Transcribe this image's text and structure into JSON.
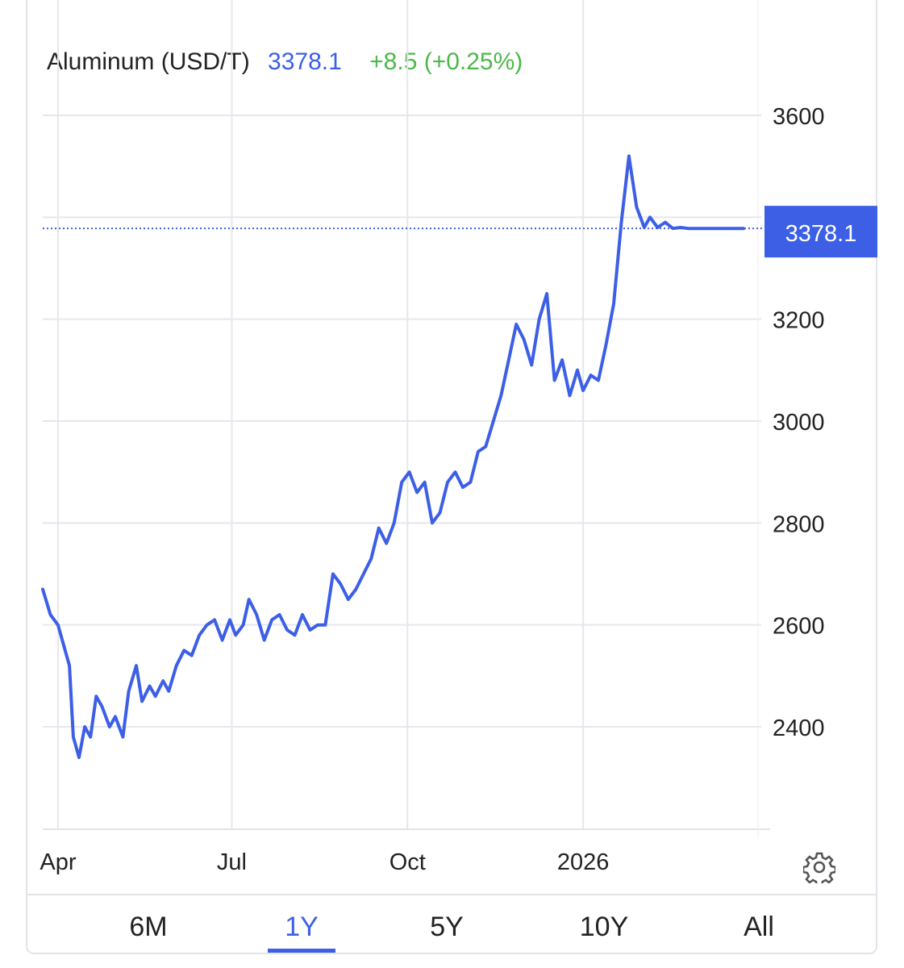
{
  "header": {
    "name": "Aluminum (USD/T)",
    "price": "3378.1",
    "change": "+8.5 (+0.25%)"
  },
  "colors": {
    "line": "#3c5fe6",
    "positive": "#4cb84a",
    "grid": "#e6e7ec",
    "badge": "#3c5fe6"
  },
  "tabs": [
    {
      "label": "6M",
      "active": false
    },
    {
      "label": "1Y",
      "active": true
    },
    {
      "label": "5Y",
      "active": false
    },
    {
      "label": "10Y",
      "active": false
    },
    {
      "label": "All",
      "active": false
    }
  ],
  "settings_icon": "gear-icon",
  "chart_data": {
    "type": "line",
    "title": "Aluminum (USD/T)",
    "xlabel": "",
    "ylabel": "",
    "ylim": [
      2200,
      3620
    ],
    "xlim": [
      "2025-03-24",
      "2026-03-26"
    ],
    "grid": true,
    "last_value_label": "3378.1",
    "y_ticks": [
      2400,
      2600,
      2800,
      3000,
      3200,
      3600
    ],
    "x_ticks": [
      {
        "label": "Apr",
        "date": "2025-04-01"
      },
      {
        "label": "Jul",
        "date": "2025-07-01"
      },
      {
        "label": "Oct",
        "date": "2025-10-01"
      },
      {
        "label": "2026",
        "date": "2026-01-01"
      }
    ],
    "series": [
      {
        "x": [
          "2025-03-24",
          "2025-03-28",
          "2025-04-01",
          "2025-04-04",
          "2025-04-07",
          "2025-04-09",
          "2025-04-12",
          "2025-04-15",
          "2025-04-18",
          "2025-04-21",
          "2025-04-24",
          "2025-04-28",
          "2025-05-01",
          "2025-05-05",
          "2025-05-08",
          "2025-05-12",
          "2025-05-15",
          "2025-05-19",
          "2025-05-22",
          "2025-05-26",
          "2025-05-29",
          "2025-06-02",
          "2025-06-06",
          "2025-06-10",
          "2025-06-14",
          "2025-06-18",
          "2025-06-22",
          "2025-06-26",
          "2025-06-30",
          "2025-07-03",
          "2025-07-07",
          "2025-07-10",
          "2025-07-14",
          "2025-07-18",
          "2025-07-22",
          "2025-07-26",
          "2025-07-30",
          "2025-08-03",
          "2025-08-07",
          "2025-08-11",
          "2025-08-15",
          "2025-08-19",
          "2025-08-23",
          "2025-08-27",
          "2025-08-31",
          "2025-09-04",
          "2025-09-08",
          "2025-09-12",
          "2025-09-16",
          "2025-09-20",
          "2025-09-24",
          "2025-09-28",
          "2025-10-02",
          "2025-10-06",
          "2025-10-10",
          "2025-10-14",
          "2025-10-18",
          "2025-10-22",
          "2025-10-26",
          "2025-10-30",
          "2025-11-03",
          "2025-11-07",
          "2025-11-11",
          "2025-11-15",
          "2025-11-19",
          "2025-11-23",
          "2025-11-27",
          "2025-12-01",
          "2025-12-05",
          "2025-12-09",
          "2025-12-13",
          "2025-12-17",
          "2025-12-21",
          "2025-12-25",
          "2025-12-29",
          "2026-01-01",
          "2026-01-05",
          "2026-01-09",
          "2026-01-13",
          "2026-01-17",
          "2026-01-21",
          "2026-01-25",
          "2026-01-29",
          "2026-02-02",
          "2026-02-05",
          "2026-02-09",
          "2026-02-13",
          "2026-02-17",
          "2026-02-21",
          "2026-02-25",
          "2026-03-01",
          "2026-03-05",
          "2026-03-09",
          "2026-03-13",
          "2026-03-16",
          "2026-03-19",
          "2026-03-22",
          "2026-03-26"
        ],
        "values": [
          2670,
          2620,
          2600,
          2560,
          2520,
          2380,
          2340,
          2400,
          2380,
          2460,
          2440,
          2400,
          2420,
          2380,
          2470,
          2520,
          2450,
          2480,
          2460,
          2490,
          2470,
          2520,
          2550,
          2540,
          2580,
          2600,
          2610,
          2570,
          2610,
          2580,
          2600,
          2650,
          2620,
          2570,
          2610,
          2620,
          2590,
          2580,
          2620,
          2590,
          2600,
          2600,
          2700,
          2680,
          2650,
          2670,
          2700,
          2730,
          2790,
          2760,
          2800,
          2880,
          2900,
          2860,
          2880,
          2800,
          2820,
          2880,
          2900,
          2870,
          2880,
          2940,
          2950,
          3000,
          3050,
          3120,
          3190,
          3160,
          3110,
          3200,
          3250,
          3080,
          3120,
          3050,
          3100,
          3060,
          3090,
          3080,
          3150,
          3230,
          3390,
          3520,
          3420,
          3380,
          3400,
          3380,
          3390,
          3378,
          3380,
          3378,
          3378,
          3378,
          3378,
          3378,
          3378,
          3378,
          3378,
          3378.1
        ]
      }
    ]
  }
}
